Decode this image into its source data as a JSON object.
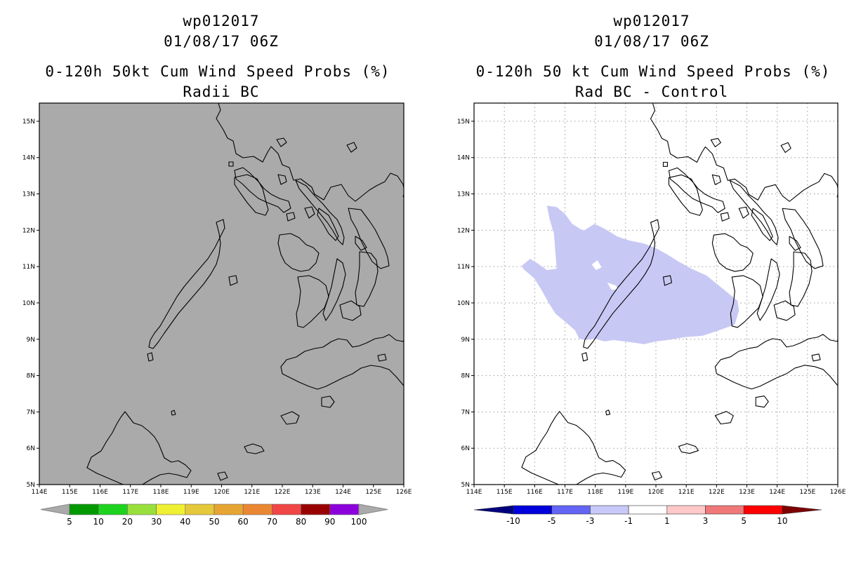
{
  "left_panel": {
    "storm_id": "wp012017",
    "datetime": "01/08/17 06Z",
    "title": "0-120h 50kt Cum Wind Speed Probs (%)",
    "subtitle": "Radii BC",
    "background_color": "#aaaaaa",
    "colorbar": {
      "labels": [
        "5",
        "10",
        "20",
        "30",
        "40",
        "50",
        "60",
        "70",
        "80",
        "90",
        "100"
      ],
      "colors": [
        "#009900",
        "#1ed31e",
        "#99e03c",
        "#f0f033",
        "#e6c83c",
        "#e6a532",
        "#eb8732",
        "#f04646",
        "#990000",
        "#8c00dc"
      ]
    }
  },
  "right_panel": {
    "storm_id": "wp012017",
    "datetime": "01/08/17 06Z",
    "title": "0-120h 50 kt Cum Wind Speed Probs (%)",
    "subtitle": "Rad BC - Control",
    "shading_color": "#c8c8f5",
    "colorbar": {
      "labels": [
        "-10",
        "-5",
        "-3",
        "-1",
        "1",
        "3",
        "5",
        "10"
      ],
      "colors": [
        "#0000dc",
        "#6464f5",
        "#c8c8fa",
        "#ffffff",
        "#ffc8c8",
        "#f07878",
        "#ff0000"
      ],
      "end_colors": [
        "#00007d",
        "#7d0000"
      ]
    }
  },
  "axes": {
    "lon_labels": [
      "114E",
      "115E",
      "116E",
      "117E",
      "118E",
      "119E",
      "120E",
      "121E",
      "122E",
      "123E",
      "124E",
      "125E",
      "126E"
    ],
    "lat_labels": [
      "5N",
      "6N",
      "7N",
      "8N",
      "9N",
      "10N",
      "11N",
      "12N",
      "13N",
      "14N",
      "15N"
    ]
  }
}
